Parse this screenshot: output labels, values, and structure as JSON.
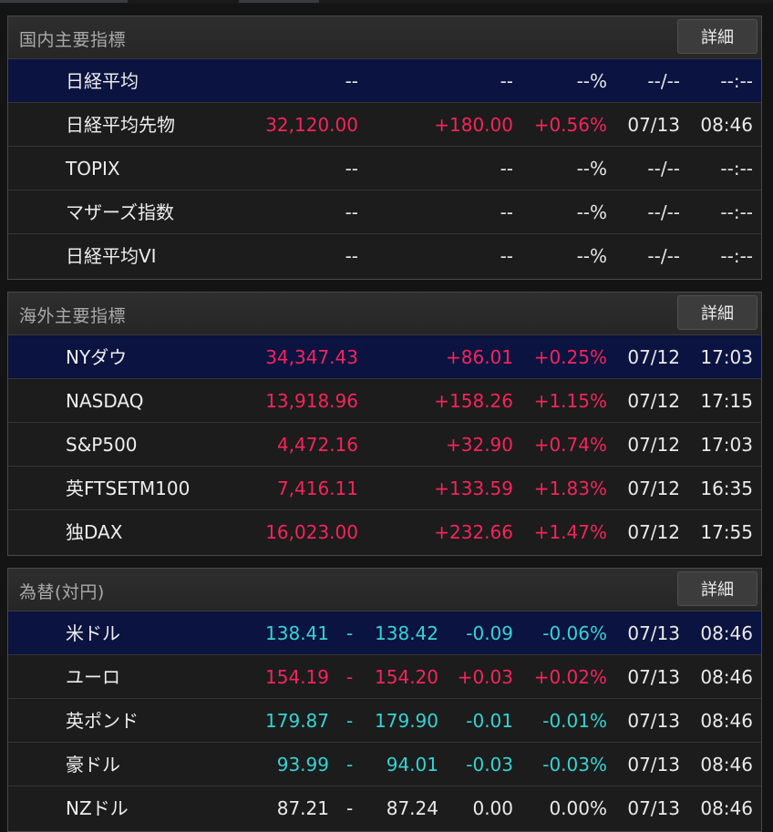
{
  "domestic": {
    "title": "国内主要指標",
    "detail_label": "詳細",
    "rows": [
      {
        "name": "日経平均",
        "price": "--",
        "change": "--",
        "pct": "--%",
        "date": "--/--",
        "time": "--:--"
      },
      {
        "name": "日経平均先物",
        "price": "32,120.00",
        "change": "+180.00",
        "pct": "+0.56%",
        "date": "07/13",
        "time": "08:46"
      },
      {
        "name": "TOPIX",
        "price": "--",
        "change": "--",
        "pct": "--%",
        "date": "--/--",
        "time": "--:--"
      },
      {
        "name": "マザーズ指数",
        "price": "--",
        "change": "--",
        "pct": "--%",
        "date": "--/--",
        "time": "--:--"
      },
      {
        "name": "日経平均VI",
        "price": "--",
        "change": "--",
        "pct": "--%",
        "date": "--/--",
        "time": "--:--"
      }
    ]
  },
  "overseas": {
    "title": "海外主要指標",
    "detail_label": "詳細",
    "rows": [
      {
        "name": "NYダウ",
        "price": "34,347.43",
        "change": "+86.01",
        "pct": "+0.25%",
        "date": "07/12",
        "time": "17:03"
      },
      {
        "name": "NASDAQ",
        "price": "13,918.96",
        "change": "+158.26",
        "pct": "+1.15%",
        "date": "07/12",
        "time": "17:15"
      },
      {
        "name": "S&P500",
        "price": "4,472.16",
        "change": "+32.90",
        "pct": "+0.74%",
        "date": "07/12",
        "time": "17:03"
      },
      {
        "name": "英FTSETM100",
        "price": "7,416.11",
        "change": "+133.59",
        "pct": "+1.83%",
        "date": "07/12",
        "time": "16:35"
      },
      {
        "name": "独DAX",
        "price": "16,023.00",
        "change": "+232.66",
        "pct": "+1.47%",
        "date": "07/12",
        "time": "17:55"
      }
    ]
  },
  "fx": {
    "title": "為替(対円)",
    "detail_label": "詳細",
    "rows": [
      {
        "name": "米ドル",
        "bid": "138.41",
        "sep": "-",
        "ask": "138.42",
        "change": "-0.09",
        "pct": "-0.06%",
        "date": "07/13",
        "time": "08:46"
      },
      {
        "name": "ユーロ",
        "bid": "154.19",
        "sep": "-",
        "ask": "154.20",
        "change": "+0.03",
        "pct": "+0.02%",
        "date": "07/13",
        "time": "08:46"
      },
      {
        "name": "英ポンド",
        "bid": "179.87",
        "sep": "-",
        "ask": "179.90",
        "change": "-0.01",
        "pct": "-0.01%",
        "date": "07/13",
        "time": "08:46"
      },
      {
        "name": "豪ドル",
        "bid": "93.99",
        "sep": "-",
        "ask": "94.01",
        "change": "-0.03",
        "pct": "-0.03%",
        "date": "07/13",
        "time": "08:46"
      },
      {
        "name": "NZドル",
        "bid": "87.21",
        "sep": "-",
        "ask": "87.24",
        "change": "0.00",
        "pct": "0.00%",
        "date": "07/13",
        "time": "08:46"
      }
    ]
  },
  "colors": {
    "up": "#f5245a",
    "down": "#36d3d3",
    "flat": "#eaeaea",
    "selected_row": "#0b1340"
  }
}
